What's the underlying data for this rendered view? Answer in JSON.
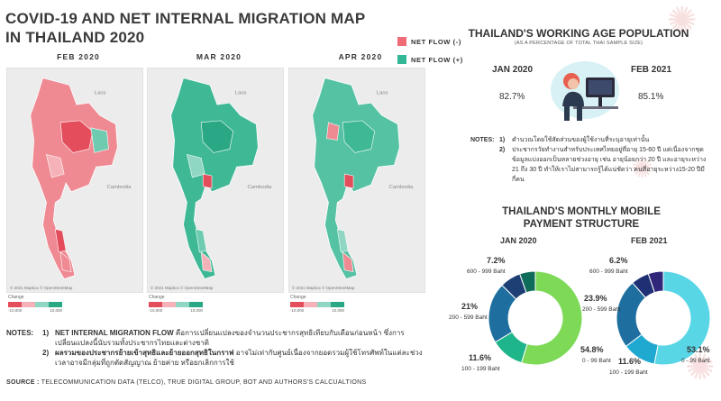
{
  "title": "COVID-19 AND NET INTERNAL MIGRATION MAP IN THAILAND 2020",
  "legend": {
    "negative": "NET FLOW (-)",
    "positive": "NET FLOW (+)",
    "negative_color": "#ef6b77",
    "positive_color": "#33b897"
  },
  "maps": [
    {
      "title": "FEB 2020",
      "labels": {
        "laos": "Laos",
        "cambodia": "Cambodia"
      },
      "credit": "© 2021 Mapbox © OpenStreetMap"
    },
    {
      "title": "MAR 2020",
      "labels": {
        "laos": "Laos",
        "cambodia": "Cambodia"
      },
      "credit": "© 2021 Mapbox © OpenStreetMap"
    },
    {
      "title": "APR 2020",
      "labels": {
        "laos": "Laos",
        "cambodia": "Cambodia"
      },
      "credit": "© 2021 Mapbox © OpenStreetMap"
    }
  ],
  "scale": {
    "label": "Change",
    "min": "-10,000",
    "max": "10,000"
  },
  "notes_left": {
    "label": "NOTES:",
    "items": [
      {
        "num": "1)",
        "head": "NET INTERNAL MIGRATION FLOW",
        "text": " คือการเปลี่ยนแปลงของจำนวนประชากรสุทธิเทียบกับเดือนก่อนหน้า ซึ่งการเปลี่ยนแปลงนี้นับรวมทั้งประชากรไทยและต่างชาติ"
      },
      {
        "num": "2)",
        "head": "ผลรวมของประชากรย้ายเข้าสุทธิและย้ายออกสุทธิในกราฟ",
        "text": " อาจไม่เท่ากับศูนย์เนื่องจากยอดรวมผู้ใช้โทรศัพท์ในแต่ละช่วงเวลาอาจมีกลุ่มที่ถูกตัดสัญญาณ ย้ายค่าย หรือยกเลิกการใช้"
      }
    ]
  },
  "source": {
    "label": "SOURCE :",
    "text": " TELECOMMUNICATION DATA (TELCO), TRUE DIGITAL GROUP, BOT AND AUTHORS'S CALCUALTIONS"
  },
  "working_age": {
    "title": "THAILAND'S WORKING AGE POPULATION",
    "subtitle": "(AS A PERCENTAGE OF TOTAL THAI SAMPLE SIZE)",
    "left_label": "JAN 2020",
    "left_value": "82.7%",
    "right_label": "FEB 2021",
    "right_value": "85.1%"
  },
  "notes_right": {
    "label": "NOTES:",
    "items": [
      {
        "num": "1)",
        "text": "คำนวณโดยใช้สัดส่วนของผู้ใช้งานที่ระบุอายุเท่านั้น"
      },
      {
        "num": "2)",
        "text": "ประชากรวัยทำงานสำหรับประเทศไทยอยู่ที่อายุ 15-60 ปี แต่เนื่องจากชุดข้อมูลแบ่งออกเป็นหลายช่วงอายุ เช่น อายุน้อยกว่า 20 ปี และอายุระหว่าง 21 ถึง 30 ปี ทำให้เราไม่สามารถรู้ได้แน่ชัดว่า คนที่อายุระหว่าง15-20 ปีมีกี่คน"
      }
    ]
  },
  "mobile": {
    "title_line1": "THAILAND'S MONTHLY MOBILE",
    "title_line2": "PAYMENT STRUCTURE",
    "charts": [
      {
        "year": "JAN 2020",
        "slices": [
          {
            "range": "0 - 99 Baht",
            "pct": "54.8%",
            "value": 54.8,
            "color": "#7ed957"
          },
          {
            "range": "100 - 199 Baht",
            "pct": "11.6%",
            "value": 11.6,
            "color": "#1fb58a"
          },
          {
            "range": "200 - 599 Baht",
            "pct": "21%",
            "value": 21,
            "color": "#1e6fa0"
          },
          {
            "range": "600 - 999 Baht",
            "pct": "7.2%",
            "value": 7.2,
            "color": "#1e3f73"
          },
          {
            "range": "",
            "pct": "",
            "value": 5.4,
            "color": "#0f6b5a"
          }
        ]
      },
      {
        "year": "FEB 2021",
        "slices": [
          {
            "range": "0 - 99 Baht",
            "pct": "53.1%",
            "value": 53.1,
            "color": "#58d6e6"
          },
          {
            "range": "100 - 199 Baht",
            "pct": "11.6%",
            "value": 11.6,
            "color": "#1fa9d0"
          },
          {
            "range": "200 - 599 Baht",
            "pct": "23.9%",
            "value": 23.9,
            "color": "#1e6fa0"
          },
          {
            "range": "600 - 999 Baht",
            "pct": "6.2%",
            "value": 6.2,
            "color": "#1e2f73"
          },
          {
            "range": "",
            "pct": "",
            "value": 5.2,
            "color": "#30267a"
          }
        ]
      }
    ]
  }
}
